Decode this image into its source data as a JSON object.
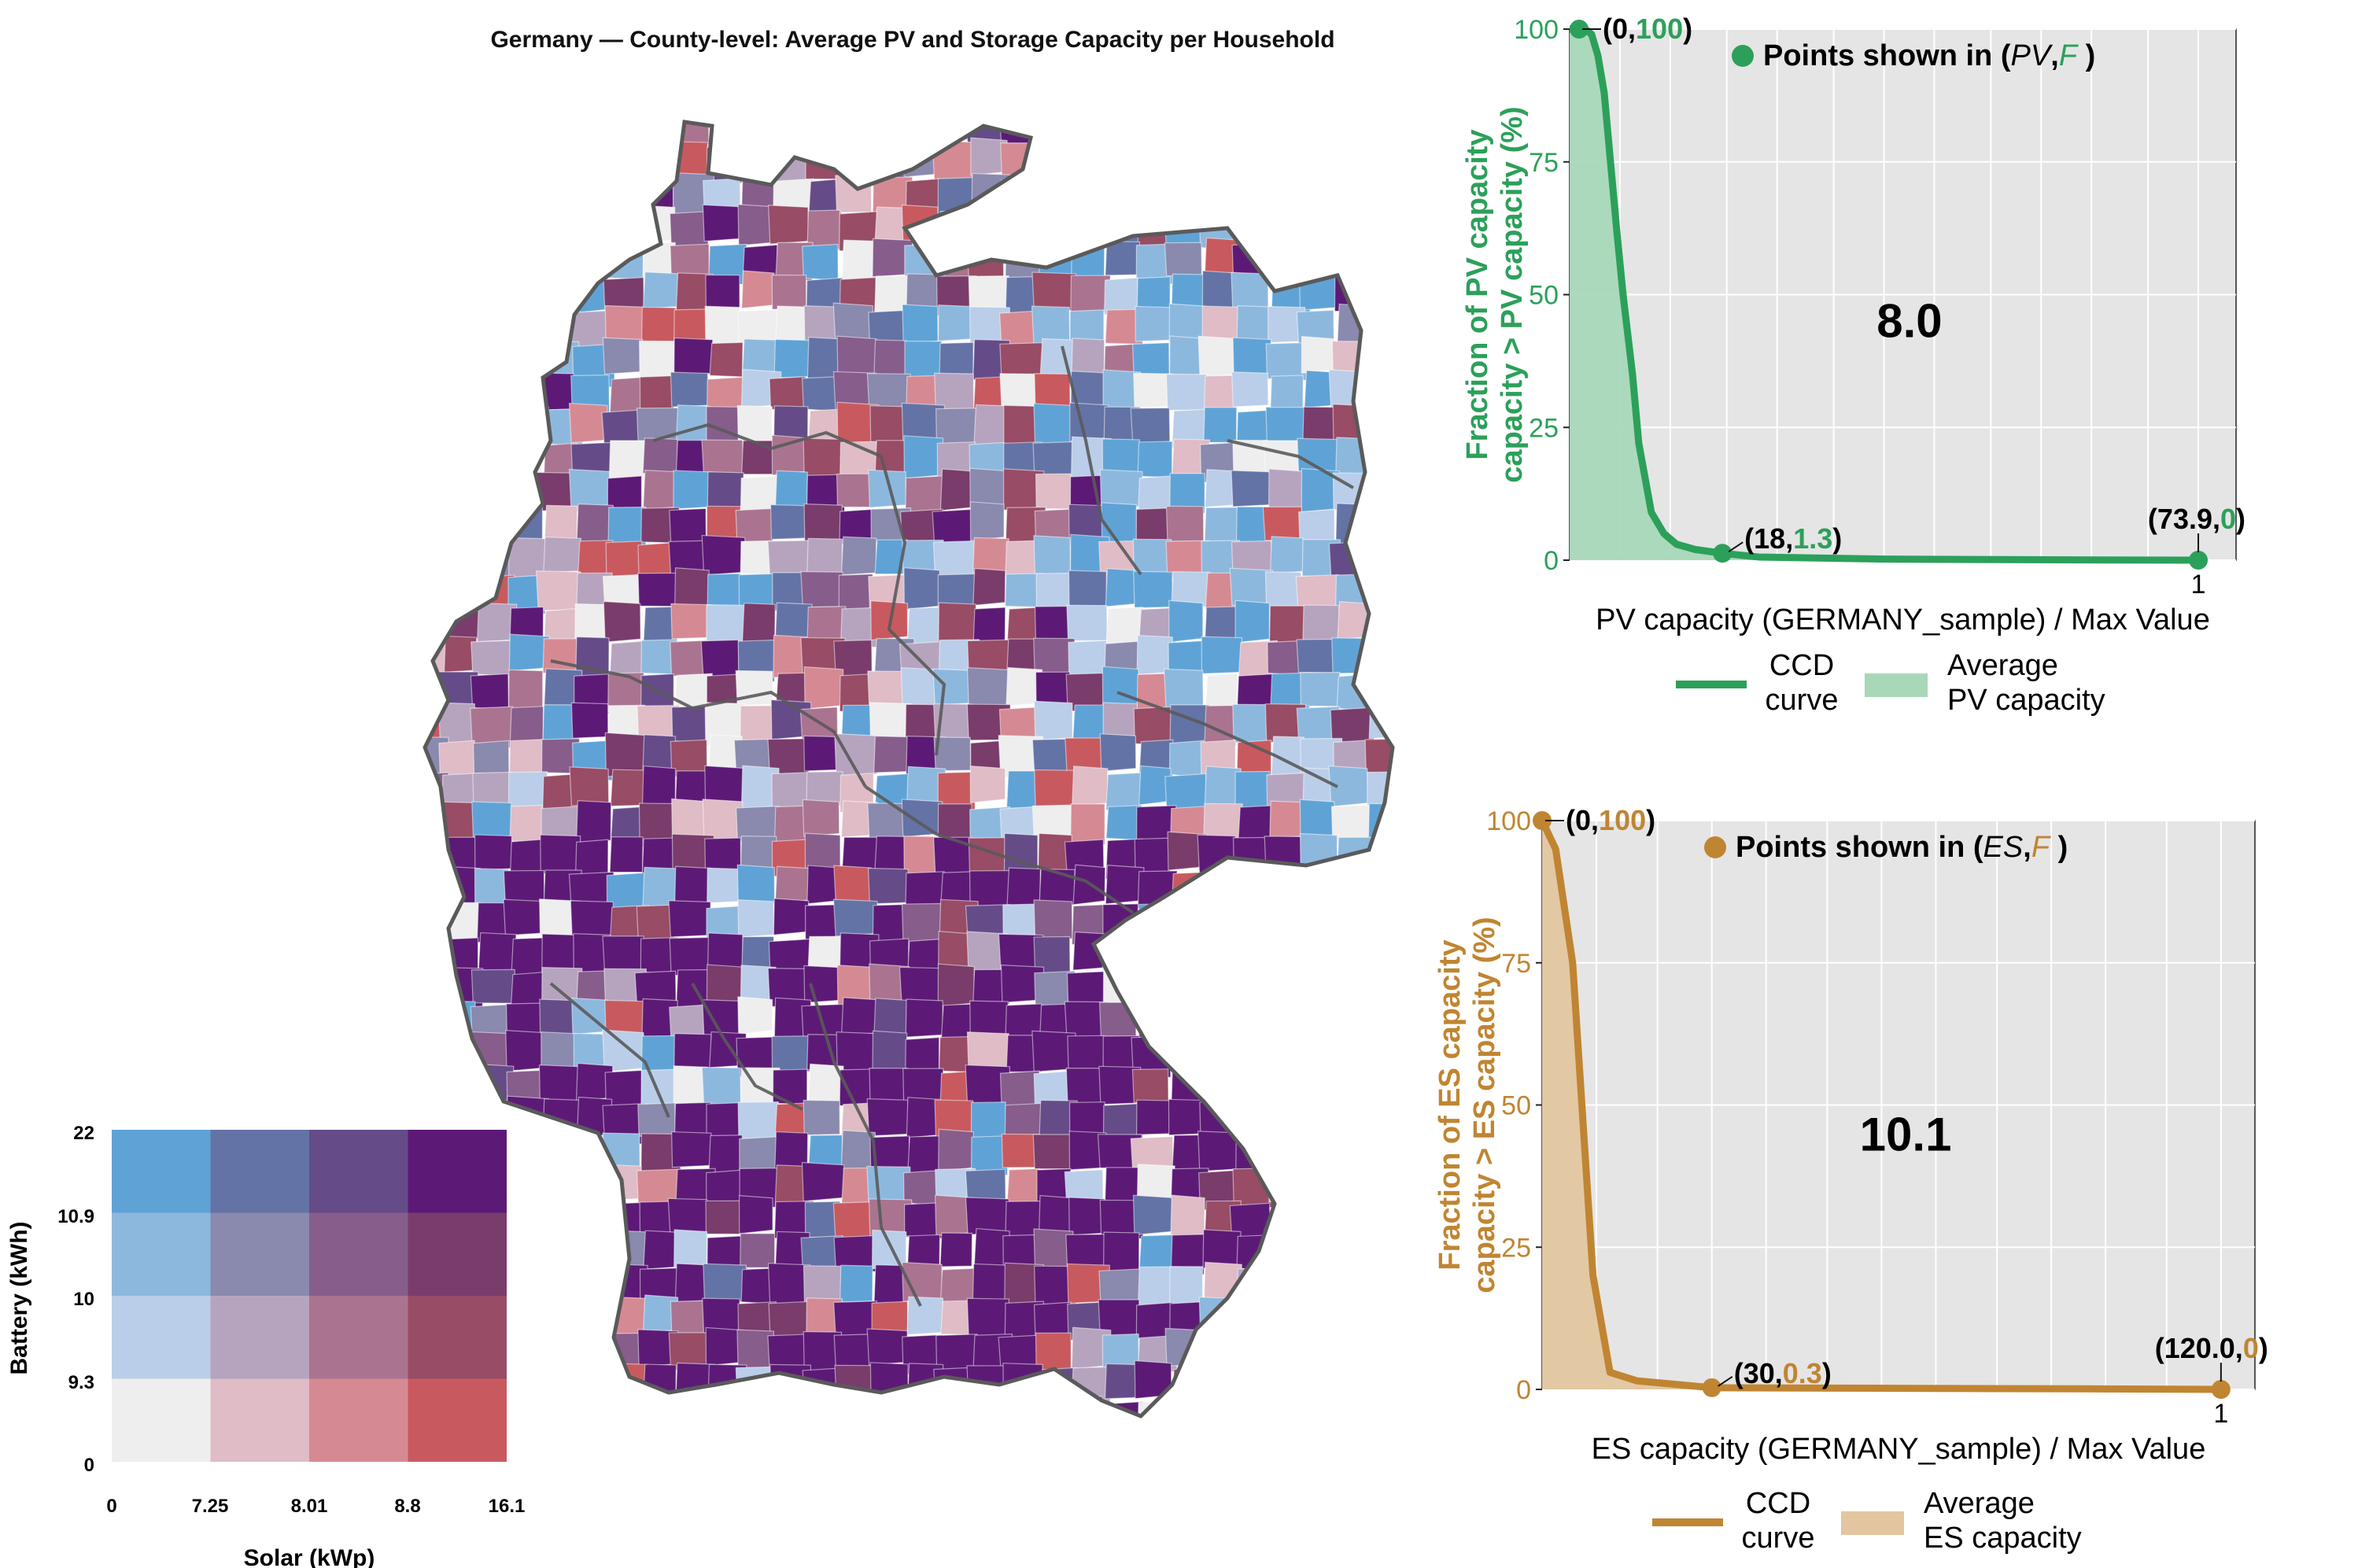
{
  "title": "Germany — County-level: Average PV and Storage Capacity per Household",
  "colors": {
    "pv": "#2ca05a",
    "pv_fill": "#a8d8b8",
    "es": "#c08532",
    "es_fill": "#e3c6a0",
    "panel_bg": "#e5e5e5",
    "map_border": "#5a5a5a"
  },
  "legend_grid": {
    "ylabel": "Battery (kWh)",
    "xlabel": "Solar (kWp)",
    "y_ticks": [
      "22",
      "10.9",
      "10",
      "9.3",
      "0"
    ],
    "x_ticks": [
      "0",
      "7.25",
      "8.01",
      "8.8",
      "16.1"
    ],
    "colors": [
      [
        "#5fa3d6",
        "#6473a6",
        "#654c89",
        "#5c1a76"
      ],
      [
        "#8db8de",
        "#8a89ae",
        "#875d8c",
        "#7a3c6b"
      ],
      [
        "#bacee9",
        "#b6a4bf",
        "#aa7490",
        "#984c65"
      ],
      [
        "#eeeeee",
        "#dfbcc6",
        "#d58a93",
        "#c85a5f"
      ]
    ]
  },
  "map": {
    "region": "Germany",
    "fill_palette": [
      "#5c1a76",
      "#654c89",
      "#6473a6",
      "#8a89ae",
      "#b6a4bf",
      "#bacee9",
      "#8db8de",
      "#5fa3d6",
      "#dfbcc6",
      "#d58a93",
      "#c85a5f",
      "#984c65",
      "#7a3c6b",
      "#875d8c",
      "#aa7490",
      "#eeeeee"
    ]
  },
  "chart_data": [
    {
      "type": "area",
      "id": "pv",
      "title": "Points shown in (PV, F )",
      "legend_symbol": "●",
      "legend_prefix": "Points shown in (",
      "legend_var1": "PV",
      "legend_sep": ",",
      "legend_var2": "F",
      "legend_suffix": " )",
      "xlabel": "PV capacity (GERMANY_sample) / Max Value",
      "ylabel_line1": "Fraction of PV capacity",
      "ylabel_line2": "capacity > PV capacity (%)",
      "xlim": [
        0,
        1.06
      ],
      "ylim": [
        0,
        100
      ],
      "y_ticks": [
        "0",
        "25",
        "50",
        "75",
        "100"
      ],
      "y_tick_values": [
        0,
        25,
        50,
        75,
        100
      ],
      "x_tick_label": "1",
      "x_tick_value": 1,
      "x_grid": [
        0.08,
        0.16,
        0.25,
        0.33,
        0.42,
        0.5,
        0.58,
        0.67,
        0.75,
        0.83,
        0.92,
        1.0
      ],
      "x": [
        0,
        0.005,
        0.015,
        0.025,
        0.035,
        0.045,
        0.055,
        0.065,
        0.075,
        0.085,
        0.1,
        0.11,
        0.13,
        0.15,
        0.17,
        0.2,
        0.243,
        0.3,
        0.5,
        0.8,
        1.0
      ],
      "y": [
        100,
        100,
        100,
        100,
        99,
        95,
        88,
        75,
        62,
        50,
        35,
        22,
        9,
        5,
        3,
        2,
        1.3,
        0.6,
        0.2,
        0.05,
        0
      ],
      "mean_label": "8.0",
      "annotations": [
        {
          "x": 0.015,
          "y": 100,
          "open": "(",
          "a": "0",
          "sep": ",",
          "b": "100",
          "close": ")"
        },
        {
          "x": 0.243,
          "y": 1.3,
          "open": "(",
          "a": "18",
          "sep": ",",
          "b": "1.3",
          "close": ")"
        },
        {
          "x": 1.0,
          "y": 0,
          "open": "(",
          "a": "73.9",
          "sep": ",",
          "b": "0",
          "close": ")"
        }
      ],
      "legend": {
        "line_label_1": "CCD",
        "line_label_2": "curve",
        "area_label_1": "Average",
        "area_label_2": "PV capacity"
      }
    },
    {
      "type": "area",
      "id": "es",
      "title": "Points shown in (ES, F )",
      "legend_symbol": "●",
      "legend_prefix": "Points shown in (",
      "legend_var1": "ES",
      "legend_sep": ",",
      "legend_var2": "F",
      "legend_suffix": " )",
      "xlabel": "ES capacity (GERMANY_sample) / Max Value",
      "ylabel_line1": "Fraction of ES capacity",
      "ylabel_line2": "capacity > ES capacity (%)",
      "xlim": [
        0,
        1.05
      ],
      "ylim": [
        0,
        100
      ],
      "y_ticks": [
        "0",
        "25",
        "50",
        "75",
        "100"
      ],
      "y_tick_values": [
        0,
        25,
        50,
        75,
        100
      ],
      "x_tick_label": "1",
      "x_tick_value": 1,
      "x_grid": [
        0.08,
        0.17,
        0.25,
        0.33,
        0.42,
        0.5,
        0.58,
        0.67,
        0.75,
        0.83,
        0.92,
        1.0
      ],
      "x": [
        0,
        0.02,
        0.045,
        0.075,
        0.1,
        0.14,
        0.25,
        0.5,
        0.8,
        1.0
      ],
      "y": [
        100,
        95,
        75,
        20,
        3,
        1.5,
        0.3,
        0.2,
        0.1,
        0
      ],
      "mean_label": "10.1",
      "annotations": [
        {
          "x": 0.0,
          "y": 100,
          "open": "(",
          "a": "0",
          "sep": ",",
          "b": "100",
          "close": ")"
        },
        {
          "x": 0.25,
          "y": 0.3,
          "open": "(",
          "a": "30",
          "sep": ",",
          "b": "0.3",
          "close": ")"
        },
        {
          "x": 1.0,
          "y": 0,
          "open": "(",
          "a": "120.0",
          "sep": ",",
          "b": "0",
          "close": ")"
        }
      ],
      "legend": {
        "line_label_1": "CCD",
        "line_label_2": "curve",
        "area_label_1": "Average",
        "area_label_2": "ES capacity"
      }
    }
  ]
}
